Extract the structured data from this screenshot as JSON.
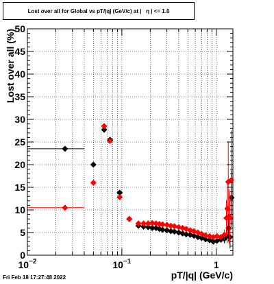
{
  "title": "Lost over all for Global vs pT/|q| (GeV/c) at |   η | <= 1.0",
  "footer": {
    "timestamp": "Fri Feb 18 17:27:48 2022"
  },
  "chart_data": {
    "type": "scatter",
    "title": "Lost over all for Global vs pT/|q| (GeV/c) at |   η | <= 1.0",
    "xlabel": "pT/|q| (GeV/c)",
    "ylabel": "Lost over all (%)",
    "x_scale": "log",
    "xlim": [
      0.01,
      1.5
    ],
    "ylim": [
      0,
      50
    ],
    "grid": true,
    "x_tick_labels": [
      {
        "value": 0.01,
        "base": "10",
        "exp": "−2"
      },
      {
        "value": 0.1,
        "base": "10",
        "exp": "−1"
      },
      {
        "value": 1,
        "base": "1",
        "exp": ""
      }
    ],
    "y_tick_labels": [
      "0",
      "5",
      "10",
      "15",
      "20",
      "25",
      "30",
      "35",
      "40",
      "45",
      "50"
    ],
    "series": [
      {
        "color": "#000000",
        "marker": "diamond",
        "points": [
          {
            "x": 0.025,
            "y": 23.5,
            "xlo": 0.01,
            "xhi": 0.04
          },
          {
            "x": 0.05,
            "y": 20.0
          },
          {
            "x": 0.065,
            "y": 27.7
          },
          {
            "x": 0.075,
            "y": 25.5
          },
          {
            "x": 0.095,
            "y": 13.8
          },
          {
            "x": 0.12,
            "y": 8.0
          },
          {
            "x": 0.15,
            "y": 6.5
          },
          {
            "x": 0.17,
            "y": 6.3
          },
          {
            "x": 0.19,
            "y": 6.2
          },
          {
            "x": 0.21,
            "y": 6.0
          },
          {
            "x": 0.23,
            "y": 6.0
          },
          {
            "x": 0.25,
            "y": 5.8
          },
          {
            "x": 0.27,
            "y": 5.6
          },
          {
            "x": 0.3,
            "y": 5.5
          },
          {
            "x": 0.33,
            "y": 5.3
          },
          {
            "x": 0.36,
            "y": 5.2
          },
          {
            "x": 0.4,
            "y": 5.0
          },
          {
            "x": 0.44,
            "y": 4.8
          },
          {
            "x": 0.48,
            "y": 4.6
          },
          {
            "x": 0.53,
            "y": 4.5
          },
          {
            "x": 0.58,
            "y": 4.3
          },
          {
            "x": 0.64,
            "y": 4.0
          },
          {
            "x": 0.7,
            "y": 3.8
          },
          {
            "x": 0.77,
            "y": 3.5
          },
          {
            "x": 0.85,
            "y": 3.3
          },
          {
            "x": 0.93,
            "y": 3.0
          },
          {
            "x": 1.02,
            "y": 3.2
          },
          {
            "x": 1.12,
            "y": 3.4
          },
          {
            "x": 1.22,
            "y": 3.6,
            "err": 1.0
          },
          {
            "x": 1.3,
            "y": 4.2,
            "err": 1.5
          },
          {
            "x": 1.35,
            "y": 6.0,
            "err": 3.0
          },
          {
            "x": 1.4,
            "y": 4.0,
            "err": 2.5
          },
          {
            "x": 1.45,
            "y": 12.7,
            "err": 6.0
          }
        ]
      },
      {
        "color": "#ff0000",
        "marker": "diamond",
        "points": [
          {
            "x": 0.025,
            "y": 10.5,
            "xlo": 0.01,
            "xhi": 0.04
          },
          {
            "x": 0.05,
            "y": 16.0
          },
          {
            "x": 0.065,
            "y": 28.5
          },
          {
            "x": 0.075,
            "y": 25.2
          },
          {
            "x": 0.095,
            "y": 12.8
          },
          {
            "x": 0.12,
            "y": 8.0
          },
          {
            "x": 0.15,
            "y": 7.0
          },
          {
            "x": 0.17,
            "y": 7.0
          },
          {
            "x": 0.19,
            "y": 7.0
          },
          {
            "x": 0.21,
            "y": 7.1
          },
          {
            "x": 0.23,
            "y": 7.0
          },
          {
            "x": 0.25,
            "y": 6.9
          },
          {
            "x": 0.27,
            "y": 6.8
          },
          {
            "x": 0.3,
            "y": 6.7
          },
          {
            "x": 0.33,
            "y": 6.5
          },
          {
            "x": 0.36,
            "y": 6.4
          },
          {
            "x": 0.4,
            "y": 6.2
          },
          {
            "x": 0.44,
            "y": 6.0
          },
          {
            "x": 0.48,
            "y": 5.8
          },
          {
            "x": 0.53,
            "y": 5.5
          },
          {
            "x": 0.58,
            "y": 5.3
          },
          {
            "x": 0.64,
            "y": 5.0
          },
          {
            "x": 0.7,
            "y": 4.7
          },
          {
            "x": 0.77,
            "y": 4.4
          },
          {
            "x": 0.85,
            "y": 4.2
          },
          {
            "x": 0.93,
            "y": 4.0
          },
          {
            "x": 1.02,
            "y": 4.2
          },
          {
            "x": 1.12,
            "y": 4.0
          },
          {
            "x": 1.22,
            "y": 4.5,
            "err": 1.2
          },
          {
            "x": 1.28,
            "y": 8.2,
            "err": 4.0
          },
          {
            "x": 1.31,
            "y": 10.3,
            "err": 6.0
          },
          {
            "x": 1.34,
            "y": 16.2,
            "err": 9.0
          },
          {
            "x": 1.37,
            "y": 8.5,
            "err": 6.0
          },
          {
            "x": 1.4,
            "y": 8.3,
            "err": 5.0
          },
          {
            "x": 1.44,
            "y": 16.6,
            "err": 11.0
          }
        ]
      }
    ]
  }
}
